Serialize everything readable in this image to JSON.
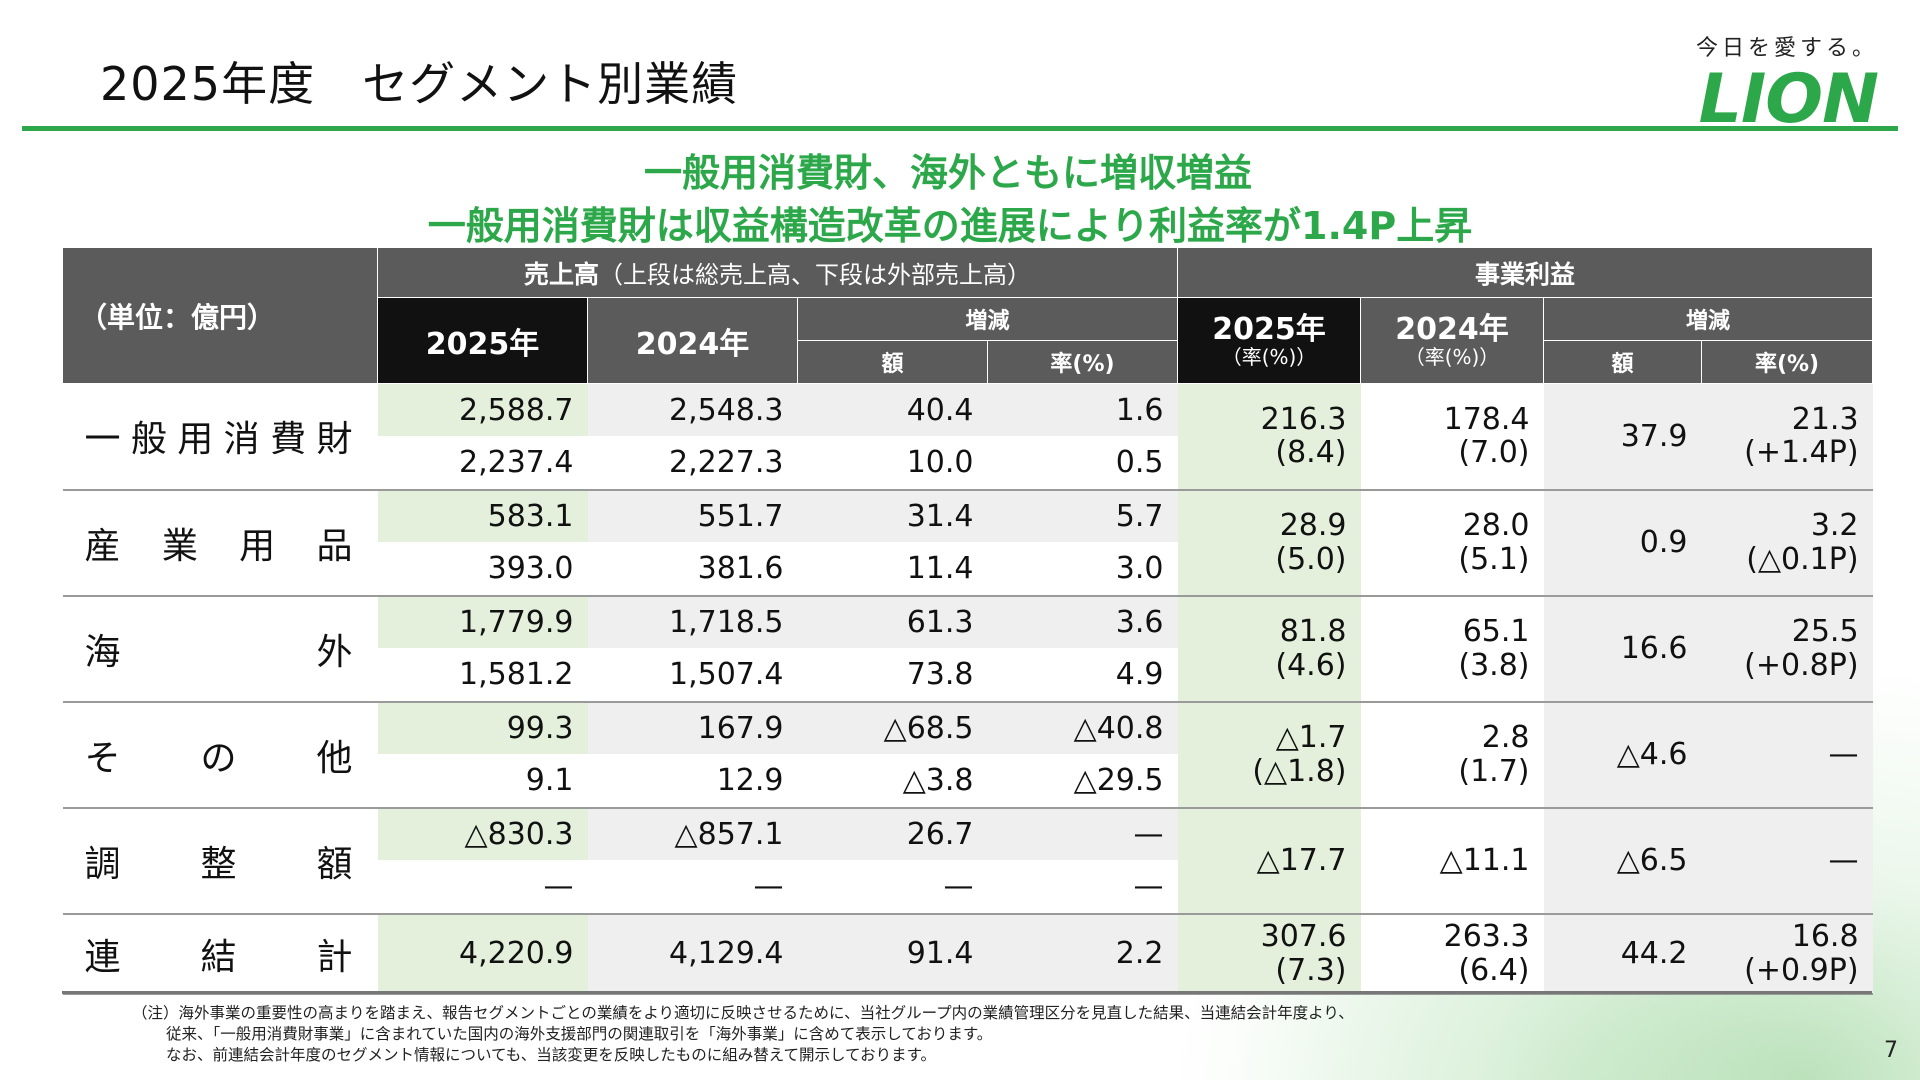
{
  "header": {
    "title": "2025年度　セグメント別業績",
    "tagline": "今日を愛する。",
    "logo": "LION",
    "headline1": "一般用消費財、海外ともに増収増益",
    "headline2": "一般用消費財は収益構造改革の進展により利益率が1.4P上昇"
  },
  "table": {
    "unit": "（単位：億円）",
    "sales_header": "売上高",
    "sales_note": "（上段は総売上高、下段は外部売上高）",
    "profit_header": "事業利益",
    "y2025": "2025年",
    "y2024": "2024年",
    "change": "増減",
    "amount": "額",
    "rate": "率(%)",
    "rate_sub": "（率(%)）",
    "rows": [
      {
        "label": [
          "一",
          "般",
          "用",
          "消",
          "費",
          "財"
        ],
        "s1": [
          "2,588.7",
          "2,548.3",
          "40.4",
          "1.6"
        ],
        "s2": [
          "2,237.4",
          "2,227.3",
          "10.0",
          "0.5"
        ],
        "p": [
          "216.3",
          "(8.4)",
          "178.4",
          "(7.0)",
          "37.9",
          "21.3",
          "(+1.4P)"
        ]
      },
      {
        "label": [
          "産",
          "業",
          "用",
          "品"
        ],
        "s1": [
          "583.1",
          "551.7",
          "31.4",
          "5.7"
        ],
        "s2": [
          "393.0",
          "381.6",
          "11.4",
          "3.0"
        ],
        "p": [
          "28.9",
          "(5.0)",
          "28.0",
          "(5.1)",
          "0.9",
          "3.2",
          "(△0.1P)"
        ]
      },
      {
        "label": [
          "海",
          "外"
        ],
        "s1": [
          "1,779.9",
          "1,718.5",
          "61.3",
          "3.6"
        ],
        "s2": [
          "1,581.2",
          "1,507.4",
          "73.8",
          "4.9"
        ],
        "p": [
          "81.8",
          "(4.6)",
          "65.1",
          "(3.8)",
          "16.6",
          "25.5",
          "(+0.8P)"
        ]
      },
      {
        "label": [
          "そ",
          "の",
          "他"
        ],
        "s1": [
          "99.3",
          "167.9",
          "△68.5",
          "△40.8"
        ],
        "s2": [
          "9.1",
          "12.9",
          "△3.8",
          "△29.5"
        ],
        "p": [
          "△1.7",
          "(△1.8)",
          "2.8",
          "(1.7)",
          "△4.6",
          "—",
          ""
        ]
      },
      {
        "label": [
          "調",
          "整",
          "額"
        ],
        "s1": [
          "△830.3",
          "△857.1",
          "26.7",
          "—"
        ],
        "s2": [
          "—",
          "—",
          "—",
          "—"
        ],
        "p": [
          "△17.7",
          "",
          "△11.1",
          "",
          "△6.5",
          "—",
          ""
        ]
      },
      {
        "label": [
          "連",
          "結",
          "計"
        ],
        "s1": [
          "4,220.9",
          "4,129.4",
          "91.4",
          "2.2"
        ],
        "p": [
          "307.6",
          "(7.3)",
          "263.3",
          "(6.4)",
          "44.2",
          "16.8",
          "(+0.9P)"
        ]
      }
    ]
  },
  "notes": [
    "（注）海外事業の重要性の高まりを踏まえ、報告セグメントごとの業績をより適切に反映させるために、当社グループ内の業績管理区分を見直した結果、当連結会計年度より、",
    "従来、「一般用消費財事業」に含まれていた国内の海外支援部門の関連取引を「海外事業」に含めて表示しております。",
    "なお、前連結会計年度のセグメント情報についても、当該変更を反映したものに組み替えて開示しております。"
  ],
  "page_number": "7"
}
